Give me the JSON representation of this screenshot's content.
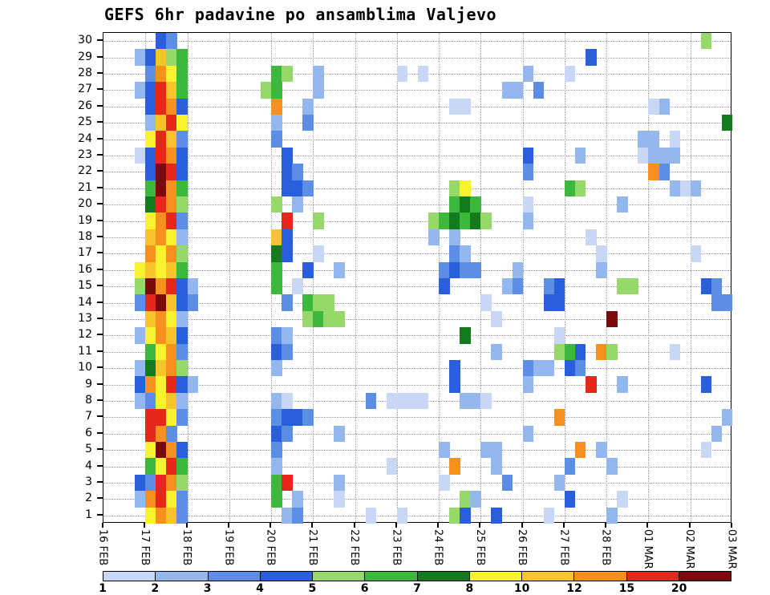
{
  "title": "GEFS 6hr padavine po ansamblima Valjevo",
  "chart_data": {
    "type": "heatmap",
    "title": "GEFS 6hr padavine po ansamblima Valjevo",
    "grid": "dotted",
    "legend_position": "bottom",
    "x_axis": {
      "tick_labels": [
        "16 FEB",
        "17 FEB",
        "18 FEB",
        "19 FEB",
        "20 FEB",
        "21 FEB",
        "22 FEB",
        "23 FEB",
        "24 FEB",
        "25 FEB",
        "26 FEB",
        "27 FEB",
        "28 FEB",
        "01 MAR",
        "02 MAR",
        "03 MAR"
      ],
      "steps_per_day": 4,
      "n_steps": 60
    },
    "y_axis": {
      "members": 30,
      "tick_labels": [
        "30",
        "29",
        "28",
        "27",
        "26",
        "25",
        "24",
        "23",
        "22",
        "21",
        "20",
        "19",
        "18",
        "17",
        "16",
        "15",
        "14",
        "13",
        "12",
        "11",
        "10",
        "9",
        "8",
        "7",
        "6",
        "5",
        "4",
        "3",
        "2",
        "1"
      ]
    },
    "colorbar": {
      "labels": [
        "1",
        "2",
        "3",
        "4",
        "5",
        "6",
        "7",
        "8",
        "10",
        "12",
        "15",
        "20"
      ],
      "colors": [
        "#c8d8f4",
        "#94b8ee",
        "#5c8ee6",
        "#2a5fdc",
        "#96d96a",
        "#3cb93c",
        "#147a1e",
        "#f8f32e",
        "#f9c32b",
        "#f6901e",
        "#e5281b",
        "#7a0a0c"
      ]
    },
    "cells_format": "[ensemble_member, time_step_6hr_from_16FEB00z, colorbar_level_index]",
    "cells": [
      [
        30,
        5,
        3
      ],
      [
        30,
        6,
        2
      ],
      [
        30,
        57,
        4
      ],
      [
        29,
        3,
        1
      ],
      [
        29,
        4,
        3
      ],
      [
        29,
        5,
        8
      ],
      [
        29,
        6,
        4
      ],
      [
        29,
        7,
        5
      ],
      [
        29,
        46,
        3
      ],
      [
        28,
        4,
        2
      ],
      [
        28,
        5,
        9
      ],
      [
        28,
        6,
        7
      ],
      [
        28,
        7,
        5
      ],
      [
        28,
        16,
        5
      ],
      [
        28,
        17,
        4
      ],
      [
        28,
        20,
        1
      ],
      [
        28,
        28,
        0
      ],
      [
        28,
        30,
        0
      ],
      [
        28,
        40,
        1
      ],
      [
        28,
        44,
        0
      ],
      [
        27,
        3,
        1
      ],
      [
        27,
        4,
        3
      ],
      [
        27,
        5,
        10
      ],
      [
        27,
        6,
        8
      ],
      [
        27,
        7,
        5
      ],
      [
        27,
        15,
        4
      ],
      [
        27,
        16,
        5
      ],
      [
        27,
        20,
        1
      ],
      [
        27,
        38,
        1
      ],
      [
        27,
        39,
        1
      ],
      [
        27,
        41,
        2
      ],
      [
        26,
        4,
        3
      ],
      [
        26,
        5,
        10
      ],
      [
        26,
        6,
        9
      ],
      [
        26,
        7,
        3
      ],
      [
        26,
        16,
        9
      ],
      [
        26,
        19,
        1
      ],
      [
        26,
        33,
        0
      ],
      [
        26,
        34,
        0
      ],
      [
        26,
        52,
        0
      ],
      [
        26,
        53,
        1
      ],
      [
        25,
        4,
        1
      ],
      [
        25,
        5,
        8
      ],
      [
        25,
        6,
        10
      ],
      [
        25,
        7,
        7
      ],
      [
        25,
        16,
        1
      ],
      [
        25,
        19,
        2
      ],
      [
        25,
        59,
        6
      ],
      [
        24,
        4,
        7
      ],
      [
        24,
        5,
        10
      ],
      [
        24,
        6,
        8
      ],
      [
        24,
        7,
        2
      ],
      [
        24,
        16,
        2
      ],
      [
        24,
        51,
        1
      ],
      [
        24,
        52,
        1
      ],
      [
        24,
        54,
        0
      ],
      [
        23,
        3,
        0
      ],
      [
        23,
        4,
        3
      ],
      [
        23,
        5,
        10
      ],
      [
        23,
        6,
        9
      ],
      [
        23,
        7,
        3
      ],
      [
        23,
        17,
        3
      ],
      [
        23,
        40,
        3
      ],
      [
        23,
        45,
        1
      ],
      [
        23,
        51,
        0
      ],
      [
        23,
        52,
        1
      ],
      [
        23,
        53,
        1
      ],
      [
        23,
        54,
        1
      ],
      [
        22,
        4,
        3
      ],
      [
        22,
        5,
        11
      ],
      [
        22,
        6,
        10
      ],
      [
        22,
        7,
        3
      ],
      [
        22,
        17,
        3
      ],
      [
        22,
        18,
        2
      ],
      [
        22,
        40,
        2
      ],
      [
        22,
        52,
        9
      ],
      [
        22,
        53,
        2
      ],
      [
        21,
        4,
        5
      ],
      [
        21,
        5,
        11
      ],
      [
        21,
        6,
        9
      ],
      [
        21,
        7,
        5
      ],
      [
        21,
        17,
        3
      ],
      [
        21,
        18,
        3
      ],
      [
        21,
        19,
        2
      ],
      [
        21,
        33,
        4
      ],
      [
        21,
        34,
        7
      ],
      [
        21,
        44,
        5
      ],
      [
        21,
        45,
        4
      ],
      [
        21,
        54,
        1
      ],
      [
        21,
        55,
        0
      ],
      [
        21,
        56,
        1
      ],
      [
        20,
        4,
        6
      ],
      [
        20,
        5,
        10
      ],
      [
        20,
        6,
        9
      ],
      [
        20,
        7,
        4
      ],
      [
        20,
        16,
        4
      ],
      [
        20,
        18,
        1
      ],
      [
        20,
        33,
        5
      ],
      [
        20,
        34,
        6
      ],
      [
        20,
        35,
        5
      ],
      [
        20,
        40,
        0
      ],
      [
        20,
        49,
        1
      ],
      [
        19,
        4,
        7
      ],
      [
        19,
        5,
        9
      ],
      [
        19,
        6,
        10
      ],
      [
        19,
        7,
        2
      ],
      [
        19,
        17,
        10
      ],
      [
        19,
        20,
        4
      ],
      [
        19,
        31,
        4
      ],
      [
        19,
        32,
        5
      ],
      [
        19,
        33,
        6
      ],
      [
        19,
        34,
        5
      ],
      [
        19,
        35,
        6
      ],
      [
        19,
        36,
        4
      ],
      [
        19,
        40,
        1
      ],
      [
        18,
        4,
        8
      ],
      [
        18,
        5,
        9
      ],
      [
        18,
        6,
        7
      ],
      [
        18,
        7,
        1
      ],
      [
        18,
        16,
        8
      ],
      [
        18,
        17,
        3
      ],
      [
        18,
        31,
        1
      ],
      [
        18,
        33,
        1
      ],
      [
        18,
        46,
        0
      ],
      [
        17,
        4,
        9
      ],
      [
        17,
        5,
        7
      ],
      [
        17,
        6,
        9
      ],
      [
        17,
        7,
        4
      ],
      [
        17,
        16,
        6
      ],
      [
        17,
        17,
        3
      ],
      [
        17,
        20,
        0
      ],
      [
        17,
        33,
        2
      ],
      [
        17,
        34,
        1
      ],
      [
        17,
        47,
        0
      ],
      [
        17,
        56,
        0
      ],
      [
        16,
        3,
        7
      ],
      [
        16,
        4,
        8
      ],
      [
        16,
        5,
        7
      ],
      [
        16,
        6,
        8
      ],
      [
        16,
        7,
        5
      ],
      [
        16,
        16,
        5
      ],
      [
        16,
        19,
        3
      ],
      [
        16,
        22,
        1
      ],
      [
        16,
        32,
        2
      ],
      [
        16,
        33,
        3
      ],
      [
        16,
        34,
        2
      ],
      [
        16,
        35,
        2
      ],
      [
        16,
        39,
        1
      ],
      [
        16,
        47,
        1
      ],
      [
        15,
        3,
        4
      ],
      [
        15,
        4,
        11
      ],
      [
        15,
        5,
        9
      ],
      [
        15,
        6,
        10
      ],
      [
        15,
        7,
        3
      ],
      [
        15,
        8,
        1
      ],
      [
        15,
        16,
        5
      ],
      [
        15,
        18,
        0
      ],
      [
        15,
        32,
        3
      ],
      [
        15,
        38,
        1
      ],
      [
        15,
        39,
        2
      ],
      [
        15,
        42,
        2
      ],
      [
        15,
        43,
        3
      ],
      [
        15,
        49,
        4
      ],
      [
        15,
        50,
        4
      ],
      [
        15,
        57,
        3
      ],
      [
        15,
        58,
        2
      ],
      [
        14,
        3,
        2
      ],
      [
        14,
        4,
        10
      ],
      [
        14,
        5,
        11
      ],
      [
        14,
        6,
        8
      ],
      [
        14,
        7,
        3
      ],
      [
        14,
        8,
        2
      ],
      [
        14,
        17,
        2
      ],
      [
        14,
        19,
        5
      ],
      [
        14,
        20,
        4
      ],
      [
        14,
        21,
        4
      ],
      [
        14,
        36,
        0
      ],
      [
        14,
        42,
        3
      ],
      [
        14,
        43,
        3
      ],
      [
        14,
        58,
        2
      ],
      [
        14,
        59,
        2
      ],
      [
        13,
        4,
        8
      ],
      [
        13,
        5,
        9
      ],
      [
        13,
        6,
        7
      ],
      [
        13,
        7,
        1
      ],
      [
        13,
        19,
        4
      ],
      [
        13,
        20,
        5
      ],
      [
        13,
        21,
        4
      ],
      [
        13,
        22,
        4
      ],
      [
        13,
        37,
        0
      ],
      [
        13,
        48,
        11
      ],
      [
        12,
        3,
        1
      ],
      [
        12,
        4,
        7
      ],
      [
        12,
        5,
        9
      ],
      [
        12,
        6,
        8
      ],
      [
        12,
        7,
        3
      ],
      [
        12,
        16,
        2
      ],
      [
        12,
        17,
        1
      ],
      [
        12,
        34,
        6
      ],
      [
        12,
        43,
        0
      ],
      [
        11,
        4,
        5
      ],
      [
        11,
        5,
        7
      ],
      [
        11,
        6,
        9
      ],
      [
        11,
        7,
        2
      ],
      [
        11,
        16,
        3
      ],
      [
        11,
        17,
        2
      ],
      [
        11,
        37,
        1
      ],
      [
        11,
        43,
        4
      ],
      [
        11,
        44,
        5
      ],
      [
        11,
        45,
        3
      ],
      [
        11,
        47,
        9
      ],
      [
        11,
        48,
        4
      ],
      [
        11,
        54,
        0
      ],
      [
        10,
        3,
        1
      ],
      [
        10,
        4,
        6
      ],
      [
        10,
        5,
        8
      ],
      [
        10,
        6,
        9
      ],
      [
        10,
        7,
        4
      ],
      [
        10,
        16,
        1
      ],
      [
        10,
        33,
        3
      ],
      [
        10,
        40,
        2
      ],
      [
        10,
        41,
        1
      ],
      [
        10,
        42,
        1
      ],
      [
        10,
        44,
        3
      ],
      [
        10,
        45,
        2
      ],
      [
        9,
        3,
        3
      ],
      [
        9,
        4,
        9
      ],
      [
        9,
        5,
        7
      ],
      [
        9,
        6,
        10
      ],
      [
        9,
        7,
        3
      ],
      [
        9,
        8,
        1
      ],
      [
        9,
        33,
        3
      ],
      [
        9,
        40,
        1
      ],
      [
        9,
        46,
        10
      ],
      [
        9,
        49,
        1
      ],
      [
        9,
        57,
        3
      ],
      [
        8,
        3,
        1
      ],
      [
        8,
        4,
        2
      ],
      [
        8,
        5,
        7
      ],
      [
        8,
        6,
        8
      ],
      [
        8,
        7,
        1
      ],
      [
        8,
        16,
        1
      ],
      [
        8,
        17,
        0
      ],
      [
        8,
        25,
        2
      ],
      [
        8,
        27,
        0
      ],
      [
        8,
        28,
        0
      ],
      [
        8,
        29,
        0
      ],
      [
        8,
        30,
        0
      ],
      [
        8,
        34,
        1
      ],
      [
        8,
        35,
        1
      ],
      [
        8,
        36,
        0
      ],
      [
        7,
        4,
        10
      ],
      [
        7,
        5,
        10
      ],
      [
        7,
        6,
        7
      ],
      [
        7,
        7,
        2
      ],
      [
        7,
        16,
        2
      ],
      [
        7,
        17,
        3
      ],
      [
        7,
        18,
        3
      ],
      [
        7,
        19,
        2
      ],
      [
        7,
        43,
        9
      ],
      [
        7,
        59,
        1
      ],
      [
        6,
        4,
        10
      ],
      [
        6,
        5,
        9
      ],
      [
        6,
        6,
        2
      ],
      [
        6,
        16,
        3
      ],
      [
        6,
        17,
        2
      ],
      [
        6,
        22,
        1
      ],
      [
        6,
        40,
        1
      ],
      [
        6,
        58,
        1
      ],
      [
        5,
        4,
        7
      ],
      [
        5,
        5,
        11
      ],
      [
        5,
        6,
        9
      ],
      [
        5,
        7,
        3
      ],
      [
        5,
        16,
        2
      ],
      [
        5,
        32,
        1
      ],
      [
        5,
        36,
        1
      ],
      [
        5,
        37,
        1
      ],
      [
        5,
        45,
        9
      ],
      [
        5,
        47,
        1
      ],
      [
        5,
        57,
        0
      ],
      [
        4,
        4,
        5
      ],
      [
        4,
        5,
        7
      ],
      [
        4,
        6,
        10
      ],
      [
        4,
        7,
        5
      ],
      [
        4,
        16,
        1
      ],
      [
        4,
        27,
        0
      ],
      [
        4,
        33,
        9
      ],
      [
        4,
        37,
        1
      ],
      [
        4,
        44,
        2
      ],
      [
        4,
        48,
        1
      ],
      [
        3,
        3,
        3
      ],
      [
        3,
        4,
        2
      ],
      [
        3,
        5,
        10
      ],
      [
        3,
        6,
        9
      ],
      [
        3,
        7,
        4
      ],
      [
        3,
        16,
        5
      ],
      [
        3,
        17,
        10
      ],
      [
        3,
        22,
        1
      ],
      [
        3,
        32,
        0
      ],
      [
        3,
        38,
        2
      ],
      [
        3,
        43,
        1
      ],
      [
        2,
        3,
        1
      ],
      [
        2,
        4,
        9
      ],
      [
        2,
        5,
        10
      ],
      [
        2,
        6,
        7
      ],
      [
        2,
        7,
        2
      ],
      [
        2,
        16,
        5
      ],
      [
        2,
        18,
        1
      ],
      [
        2,
        22,
        0
      ],
      [
        2,
        34,
        4
      ],
      [
        2,
        35,
        1
      ],
      [
        2,
        44,
        3
      ],
      [
        2,
        49,
        0
      ],
      [
        1,
        4,
        7
      ],
      [
        1,
        5,
        9
      ],
      [
        1,
        6,
        8
      ],
      [
        1,
        7,
        2
      ],
      [
        1,
        17,
        1
      ],
      [
        1,
        18,
        2
      ],
      [
        1,
        25,
        0
      ],
      [
        1,
        28,
        0
      ],
      [
        1,
        33,
        4
      ],
      [
        1,
        34,
        3
      ],
      [
        1,
        37,
        3
      ],
      [
        1,
        42,
        0
      ],
      [
        1,
        48,
        1
      ]
    ]
  }
}
